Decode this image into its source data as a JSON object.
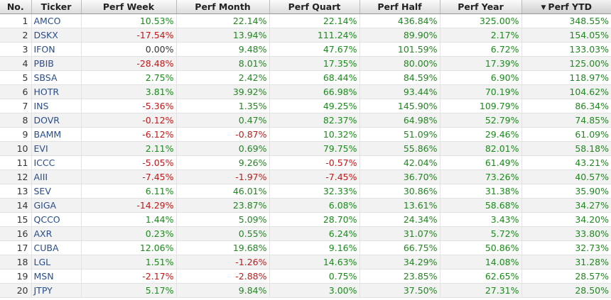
{
  "columns": {
    "no": "No.",
    "ticker": "Ticker",
    "week": "Perf Week",
    "month": "Perf Month",
    "quarter": "Perf Quart",
    "half": "Perf Half",
    "year": "Perf Year",
    "ytd": "Perf YTD"
  },
  "sort": {
    "column": "ytd",
    "direction": "desc",
    "icon": "sort-desc-triangle"
  },
  "colors": {
    "positive": "#1d8a1d",
    "negative": "#c01a1a",
    "ticker": "#2a4d8c"
  },
  "rows": [
    {
      "no": "1",
      "ticker": "AMCO",
      "week": "10.53%",
      "month": "22.14%",
      "quarter": "22.14%",
      "half": "436.84%",
      "year": "325.00%",
      "ytd": "348.55%"
    },
    {
      "no": "2",
      "ticker": "DSKX",
      "week": "-17.54%",
      "month": "13.94%",
      "quarter": "111.24%",
      "half": "89.90%",
      "year": "2.17%",
      "ytd": "154.05%"
    },
    {
      "no": "3",
      "ticker": "IFON",
      "week": "0.00%",
      "month": "9.48%",
      "quarter": "47.67%",
      "half": "101.59%",
      "year": "6.72%",
      "ytd": "133.03%"
    },
    {
      "no": "4",
      "ticker": "PBIB",
      "week": "-28.48%",
      "month": "8.01%",
      "quarter": "17.35%",
      "half": "80.00%",
      "year": "17.39%",
      "ytd": "125.00%"
    },
    {
      "no": "5",
      "ticker": "SBSA",
      "week": "2.75%",
      "month": "2.42%",
      "quarter": "68.44%",
      "half": "84.59%",
      "year": "6.90%",
      "ytd": "118.97%"
    },
    {
      "no": "6",
      "ticker": "HOTR",
      "week": "3.81%",
      "month": "39.92%",
      "quarter": "66.98%",
      "half": "93.44%",
      "year": "70.19%",
      "ytd": "104.62%"
    },
    {
      "no": "7",
      "ticker": "INS",
      "week": "-5.36%",
      "month": "1.35%",
      "quarter": "49.25%",
      "half": "145.90%",
      "year": "109.79%",
      "ytd": "86.34%"
    },
    {
      "no": "8",
      "ticker": "DOVR",
      "week": "-0.12%",
      "month": "0.47%",
      "quarter": "82.37%",
      "half": "64.98%",
      "year": "52.79%",
      "ytd": "74.85%"
    },
    {
      "no": "9",
      "ticker": "BAMM",
      "week": "-6.12%",
      "month": "-0.87%",
      "quarter": "10.32%",
      "half": "51.09%",
      "year": "29.46%",
      "ytd": "61.09%"
    },
    {
      "no": "10",
      "ticker": "EVI",
      "week": "2.11%",
      "month": "0.69%",
      "quarter": "79.75%",
      "half": "55.86%",
      "year": "82.01%",
      "ytd": "58.18%"
    },
    {
      "no": "11",
      "ticker": "ICCC",
      "week": "-5.05%",
      "month": "9.26%",
      "quarter": "-0.57%",
      "half": "42.04%",
      "year": "61.49%",
      "ytd": "43.21%"
    },
    {
      "no": "12",
      "ticker": "AIII",
      "week": "-7.45%",
      "month": "-1.97%",
      "quarter": "-7.45%",
      "half": "36.70%",
      "year": "73.26%",
      "ytd": "40.57%"
    },
    {
      "no": "13",
      "ticker": "SEV",
      "week": "6.11%",
      "month": "46.01%",
      "quarter": "32.33%",
      "half": "30.86%",
      "year": "31.38%",
      "ytd": "35.90%"
    },
    {
      "no": "14",
      "ticker": "GIGA",
      "week": "-14.29%",
      "month": "23.87%",
      "quarter": "6.08%",
      "half": "13.61%",
      "year": "58.68%",
      "ytd": "34.27%"
    },
    {
      "no": "15",
      "ticker": "QCCO",
      "week": "1.44%",
      "month": "5.09%",
      "quarter": "28.70%",
      "half": "24.34%",
      "year": "3.43%",
      "ytd": "34.20%"
    },
    {
      "no": "16",
      "ticker": "AXR",
      "week": "0.23%",
      "month": "0.55%",
      "quarter": "6.24%",
      "half": "31.07%",
      "year": "5.72%",
      "ytd": "33.80%"
    },
    {
      "no": "17",
      "ticker": "CUBA",
      "week": "12.06%",
      "month": "19.68%",
      "quarter": "9.16%",
      "half": "66.75%",
      "year": "50.86%",
      "ytd": "32.73%"
    },
    {
      "no": "18",
      "ticker": "LGL",
      "week": "1.51%",
      "month": "-1.26%",
      "quarter": "14.63%",
      "half": "34.29%",
      "year": "14.08%",
      "ytd": "31.28%"
    },
    {
      "no": "19",
      "ticker": "MSN",
      "week": "-2.17%",
      "month": "-2.88%",
      "quarter": "0.75%",
      "half": "23.85%",
      "year": "62.65%",
      "ytd": "28.57%"
    },
    {
      "no": "20",
      "ticker": "JTPY",
      "week": "5.17%",
      "month": "9.84%",
      "quarter": "3.00%",
      "half": "37.50%",
      "year": "27.31%",
      "ytd": "28.50%"
    }
  ]
}
